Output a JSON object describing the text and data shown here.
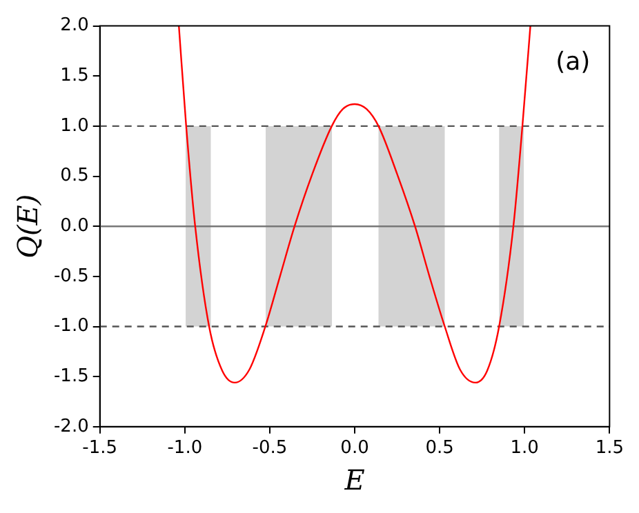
{
  "chart_data": {
    "type": "line",
    "xlabel": "E",
    "ylabel": "Q(E)",
    "annotations": [
      "(a)"
    ],
    "xlim": [
      -1.5,
      1.5
    ],
    "ylim": [
      -2,
      2
    ],
    "xticks": [
      -1.5,
      {
        "value": -1,
        "label": "-1.0"
      },
      -0.5,
      {
        "value": 0,
        "label": "0.0"
      },
      0.5,
      {
        "value": 1,
        "label": "1.0"
      },
      1.5
    ],
    "yticks": [
      {
        "value": -2,
        "label": "-2.0"
      },
      -1.5,
      {
        "value": -1,
        "label": "-1.0"
      },
      -0.5,
      {
        "value": 0,
        "label": "0.0"
      },
      0.5,
      {
        "value": 1,
        "label": "1.0"
      },
      1.5,
      {
        "value": 2,
        "label": "2.0"
      }
    ],
    "grid": false,
    "legend": false,
    "marker": "none",
    "line_style": "solid",
    "series": [
      {
        "color": "#ff0000",
        "x": [
          -1.035,
          -0.992,
          -0.939,
          -0.857,
          -0.78,
          -0.706,
          -0.62,
          -0.526,
          -0.44,
          -0.354,
          -0.25,
          -0.135,
          -0.07,
          0,
          0.07,
          0.14,
          0.25,
          0.355,
          0.44,
          0.53,
          0.62,
          0.71,
          0.78,
          0.85,
          0.934,
          0.987,
          1.034
        ],
        "values": [
          2.0,
          1.0,
          0.0,
          -1.0,
          -1.44,
          -1.56,
          -1.43,
          -1.0,
          -0.5,
          0.0,
          0.52,
          1.0,
          1.17,
          1.22,
          1.17,
          1.0,
          0.52,
          0.0,
          -0.5,
          -1.0,
          -1.43,
          -1.56,
          -1.44,
          -1.0,
          0.0,
          1.0,
          2.0
        ]
      }
    ],
    "ref_lines": [
      {
        "axis": "y",
        "value": 1,
        "color": "#555555",
        "line_style": "dashed"
      },
      {
        "axis": "y",
        "value": -1,
        "color": "#555555",
        "line_style": "dashed"
      },
      {
        "axis": "y",
        "value": 0,
        "color": "#777777",
        "line_style": "solid"
      }
    ],
    "bands": [
      {
        "axis": "x",
        "from": -0.995,
        "to": -0.847,
        "color": "#d3d3d3"
      },
      {
        "axis": "x",
        "from": -0.524,
        "to": -0.134,
        "color": "#d3d3d3"
      },
      {
        "axis": "x",
        "from": 0.14,
        "to": 0.53,
        "color": "#d3d3d3"
      },
      {
        "axis": "x",
        "from": 0.85,
        "to": 0.995,
        "color": "#d3d3d3"
      }
    ]
  }
}
